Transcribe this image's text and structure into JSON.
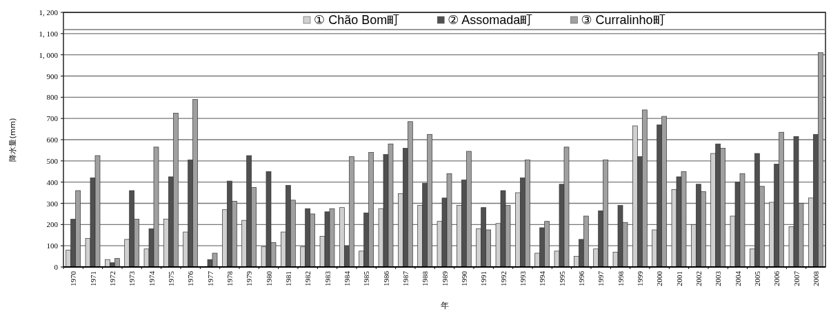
{
  "chart_data": {
    "type": "bar",
    "xlabel": "年",
    "ylabel": "降水量(mm)",
    "categories": [
      "1970",
      "1971",
      "1972",
      "1973",
      "1974",
      "1975",
      "1976",
      "1977",
      "1978",
      "1979",
      "1980",
      "1981",
      "1982",
      "1983",
      "1984",
      "1985",
      "1986",
      "1987",
      "1988",
      "1989",
      "1990",
      "1991",
      "1992",
      "1993",
      "1994",
      "1995",
      "1996",
      "1997",
      "1998",
      "1999",
      "2000",
      "2001",
      "2002",
      "2003",
      "2004",
      "2005",
      "2006",
      "2007",
      "2008"
    ],
    "series": [
      {
        "name": "① Chão Bom町",
        "color": "#d0d0d0",
        "values": [
          80,
          135,
          35,
          130,
          85,
          225,
          165,
          null,
          270,
          220,
          95,
          165,
          95,
          145,
          280,
          75,
          275,
          345,
          290,
          215,
          290,
          180,
          205,
          350,
          65,
          75,
          50,
          85,
          70,
          665,
          175,
          365,
          200,
          535,
          240,
          85,
          305,
          190,
          325
        ]
      },
      {
        "name": "② Assomada町",
        "color": "#505050",
        "values": [
          225,
          420,
          20,
          360,
          180,
          425,
          505,
          35,
          405,
          525,
          450,
          385,
          275,
          260,
          100,
          255,
          530,
          560,
          395,
          325,
          410,
          280,
          360,
          420,
          185,
          390,
          130,
          265,
          290,
          520,
          670,
          425,
          390,
          580,
          400,
          535,
          485,
          615,
          625
        ]
      },
      {
        "name": "③ Curralinho町",
        "color": "#a0a0a0",
        "values": [
          360,
          525,
          40,
          225,
          565,
          725,
          790,
          65,
          310,
          375,
          115,
          315,
          250,
          275,
          520,
          540,
          580,
          685,
          625,
          440,
          545,
          175,
          290,
          505,
          215,
          565,
          240,
          505,
          210,
          740,
          710,
          450,
          355,
          560,
          440,
          380,
          635,
          300,
          1010
        ]
      }
    ],
    "ylim": [
      0,
      1200
    ],
    "yticks": [
      0,
      100,
      200,
      300,
      400,
      500,
      600,
      700,
      800,
      900,
      {
        "value": 1000,
        "label": "1, 000"
      },
      {
        "value": 1100,
        "label": "1, 100"
      },
      {
        "value": 1200,
        "label": "1, 200"
      }
    ],
    "grid": "y",
    "legend": "top"
  }
}
